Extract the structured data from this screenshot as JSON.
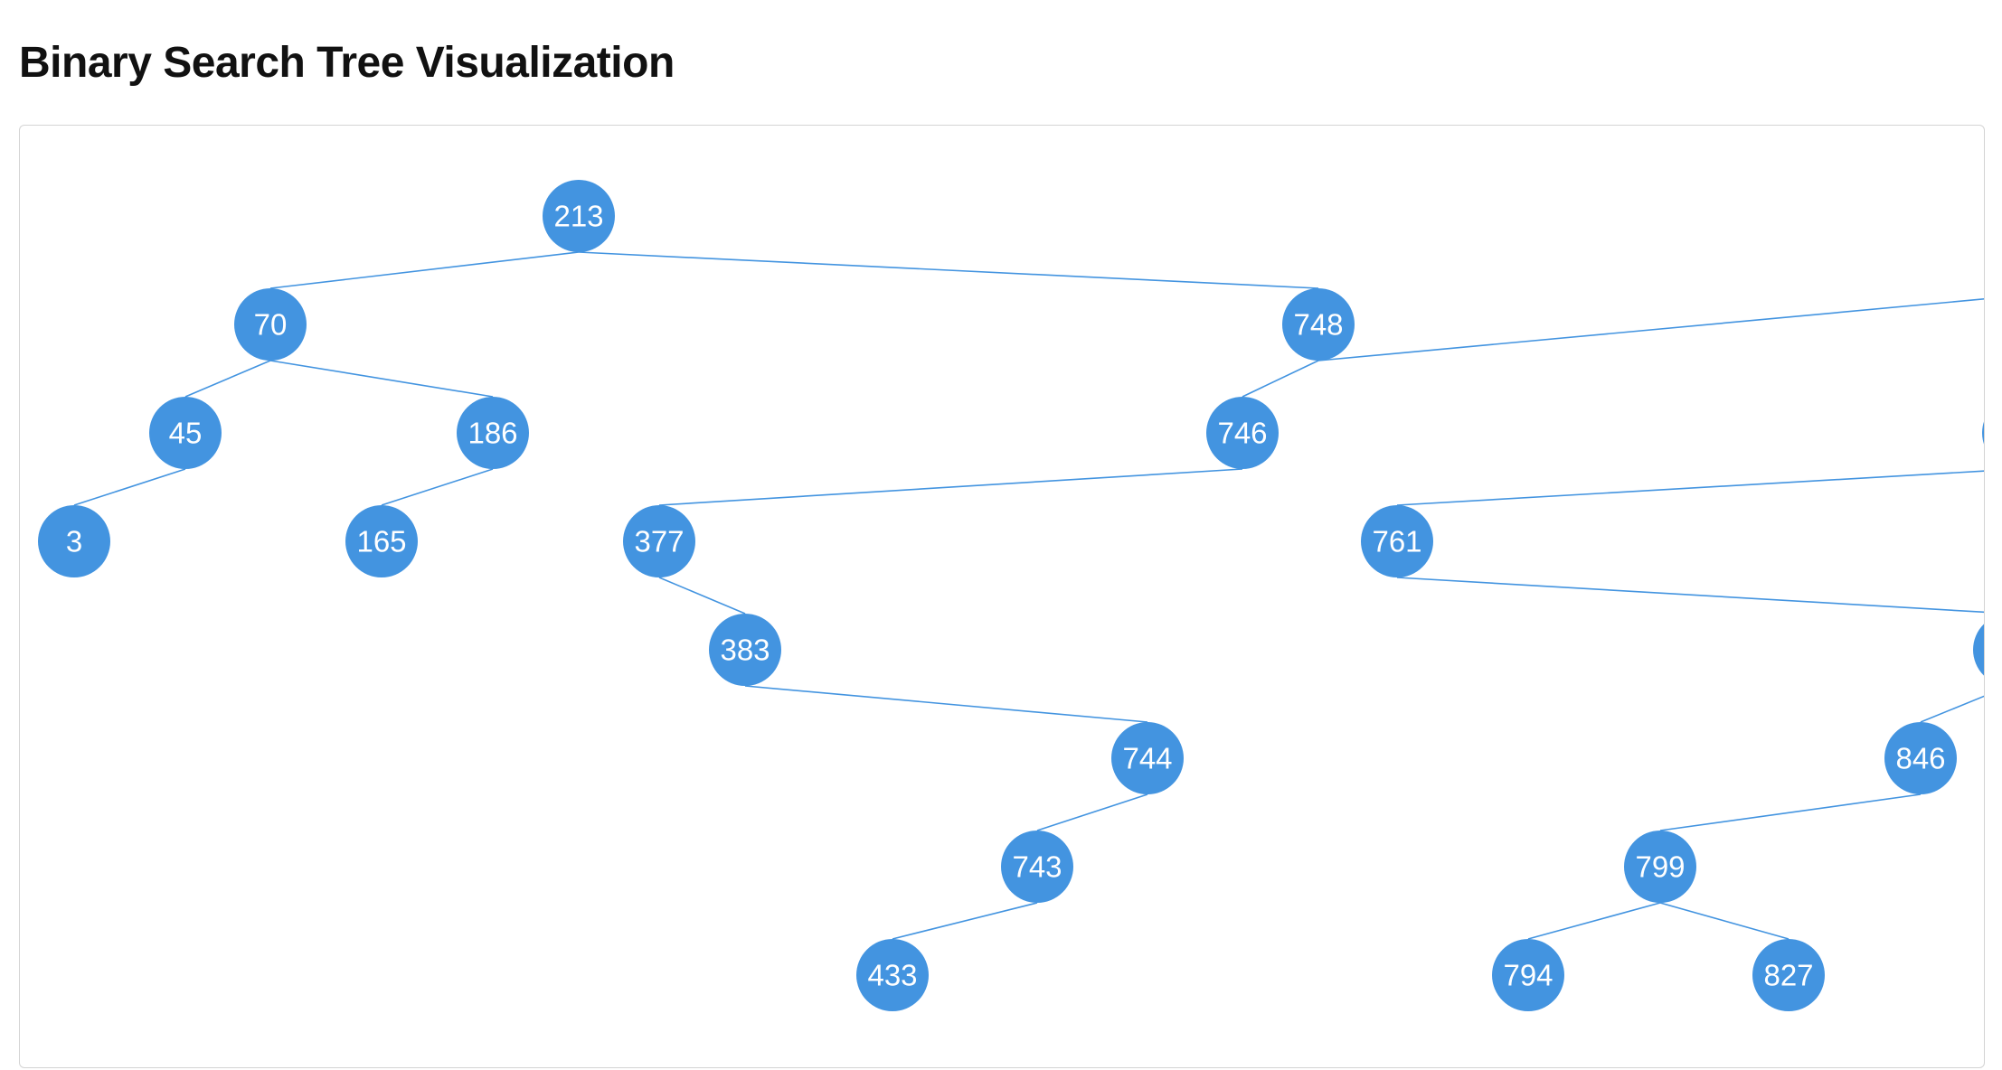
{
  "page": {
    "title": "Binary Search Tree Visualization"
  },
  "tree": {
    "node_color": "#4394e0",
    "edge_color": "#4394e0",
    "label_color": "#ffffff",
    "nodes": [
      {
        "id": "n213",
        "label": "213"
      },
      {
        "id": "n70",
        "label": "70"
      },
      {
        "id": "n748",
        "label": "748"
      },
      {
        "id": "n45",
        "label": "45"
      },
      {
        "id": "n186",
        "label": "186"
      },
      {
        "id": "n3",
        "label": "3"
      },
      {
        "id": "n165",
        "label": "165"
      },
      {
        "id": "n746",
        "label": "746"
      },
      {
        "id": "n377",
        "label": "377"
      },
      {
        "id": "n383",
        "label": "383"
      },
      {
        "id": "n744",
        "label": "744"
      },
      {
        "id": "n743",
        "label": "743"
      },
      {
        "id": "n433",
        "label": "433"
      },
      {
        "id": "n761",
        "label": "761"
      },
      {
        "id": "n846",
        "label": "846"
      },
      {
        "id": "n799",
        "label": "799"
      },
      {
        "id": "n794",
        "label": "794"
      },
      {
        "id": "n827",
        "label": "827"
      },
      {
        "id": "nR1",
        "label": ""
      },
      {
        "id": "nR2",
        "label": ""
      },
      {
        "id": "nR3",
        "label": ""
      }
    ],
    "edges": [
      [
        "n213",
        "n70"
      ],
      [
        "n213",
        "n748"
      ],
      [
        "n70",
        "n45"
      ],
      [
        "n70",
        "n186"
      ],
      [
        "n45",
        "n3"
      ],
      [
        "n186",
        "n165"
      ],
      [
        "n748",
        "n746"
      ],
      [
        "n748",
        "nR1"
      ],
      [
        "n746",
        "n377"
      ],
      [
        "n377",
        "n383"
      ],
      [
        "n383",
        "n744"
      ],
      [
        "n744",
        "n743"
      ],
      [
        "n743",
        "n433"
      ],
      [
        "nR1",
        "nR2"
      ],
      [
        "nR2",
        "n761"
      ],
      [
        "n761",
        "nR3"
      ],
      [
        "nR3",
        "n846"
      ],
      [
        "n846",
        "n799"
      ],
      [
        "n799",
        "n794"
      ],
      [
        "n799",
        "n827"
      ]
    ]
  }
}
